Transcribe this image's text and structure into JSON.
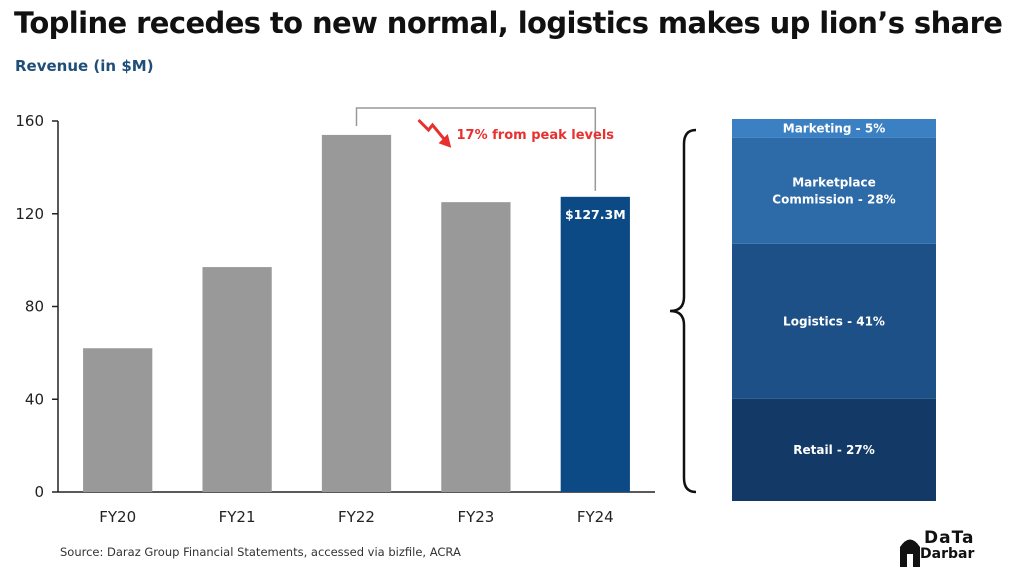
{
  "title": "Topline recedes to new normal, logistics makes up lion’s share",
  "subtitle": "Revenue (in $M)",
  "source": "Source: Daraz Group Financial Statements, accessed via bizfile, ACRA",
  "logo": {
    "line1": "DaTa",
    "line2": "Darbar"
  },
  "colors": {
    "bar_gray": "#999999",
    "bar_highlight": "#0c4a86",
    "annotation_red": "#e8312f",
    "bracket": "#111111",
    "marketing": "#3b80c3",
    "marketplace": "#2c6aa8",
    "logistics": "#1d5087",
    "retail": "#133a66"
  },
  "chart_data": [
    {
      "type": "bar",
      "categories": [
        "FY20",
        "FY21",
        "FY22",
        "FY23",
        "FY24"
      ],
      "values": [
        62,
        97,
        154,
        125,
        127.3
      ],
      "ylim": [
        0,
        160
      ],
      "yticks": [
        0,
        40,
        80,
        120,
        160
      ],
      "highlight_index": 4,
      "data_labels": {
        "FY24": "$127.3M"
      },
      "annotation": {
        "text": "17% from peak levels",
        "from": "FY22",
        "to": "FY24"
      },
      "grid": false
    },
    {
      "type": "bar",
      "stacked": true,
      "segments": [
        {
          "label": "Retail - 27%",
          "value": 27
        },
        {
          "label": "Logistics - 41%",
          "value": 41
        },
        {
          "label": "Marketplace Commission - 28%",
          "lines": [
            "Marketplace",
            "Commission - 28%"
          ],
          "value": 28
        },
        {
          "label": "Marketing - 5%",
          "value": 5
        }
      ]
    }
  ]
}
